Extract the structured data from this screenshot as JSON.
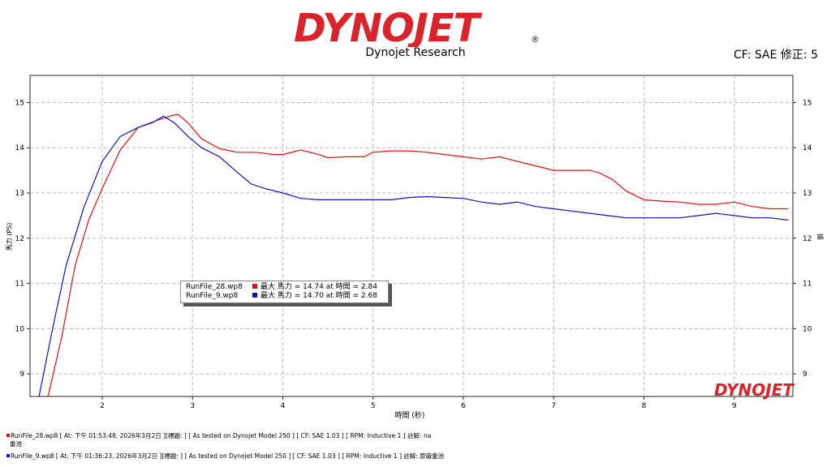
{
  "header": {
    "logo_text": "DYNOJET",
    "subtitle": "Dynojet Research",
    "cf_label": "CF: SAE 修正: 5"
  },
  "watermark": {
    "text": "DYNOJET"
  },
  "legend": {
    "entries": [
      {
        "file": "RunFile_28.wp8",
        "text": "最大 馬力 = 14.74 at 時間 = 2.84",
        "color": "#e01010"
      },
      {
        "file": "RunFile_9.wp8",
        "text": "最大 馬力 = 14.70 at 時間 = 2.68",
        "color": "#1010c0"
      }
    ]
  },
  "footer": {
    "lines": [
      {
        "text": "RunFile_28.wp8  [ At: 下午 01:53:48, 2026年3月2日 ][標題: ]  [ As tested on Dynojet Model 250 ]  [ CF: SAE 1.03 ]  [ RPM: Inductive 1 ] 註解: na",
        "cont": "重池",
        "color": "#e01010"
      },
      {
        "text": "RunFile_9.wp8  [ At: 下午 01:36:23, 2026年3月2日 ][標題: ]  [ As tested on Dynojet Model 250 ]  [ CF: SAE 1.03 ]  [ RPM: Inductive 1 ] 註解: 原廠重池",
        "cont": "",
        "color": "#1010c0"
      }
    ]
  },
  "chart_data": {
    "type": "line",
    "xlabel": "時間 (秒)",
    "ylabel": "馬力 (PS)",
    "ylabel_right": "據",
    "xlim": [
      1.2,
      9.65
    ],
    "ylim": [
      8.5,
      15.6
    ],
    "xticks": [
      2,
      3,
      4,
      5,
      6,
      7,
      8,
      9
    ],
    "yticks": [
      9,
      10,
      11,
      12,
      13,
      14,
      15
    ],
    "grid": true,
    "legend_position": "center-left",
    "series": [
      {
        "name": "RunFile_28.wp8",
        "color": "#e01010",
        "x": [
          1.4,
          1.55,
          1.7,
          1.85,
          2.0,
          2.2,
          2.4,
          2.6,
          2.75,
          2.84,
          2.95,
          3.1,
          3.3,
          3.5,
          3.7,
          3.9,
          4.0,
          4.2,
          4.4,
          4.5,
          4.7,
          4.9,
          5.0,
          5.2,
          5.4,
          5.6,
          5.8,
          6.0,
          6.2,
          6.4,
          6.6,
          6.8,
          7.0,
          7.2,
          7.4,
          7.5,
          7.65,
          7.8,
          8.0,
          8.2,
          8.4,
          8.6,
          8.8,
          9.0,
          9.2,
          9.4,
          9.6
        ],
        "y": [
          8.5,
          9.8,
          11.4,
          12.4,
          13.1,
          13.95,
          14.45,
          14.6,
          14.7,
          14.74,
          14.55,
          14.2,
          13.98,
          13.9,
          13.9,
          13.85,
          13.85,
          13.95,
          13.85,
          13.78,
          13.8,
          13.8,
          13.9,
          13.93,
          13.93,
          13.9,
          13.85,
          13.8,
          13.75,
          13.8,
          13.7,
          13.6,
          13.5,
          13.5,
          13.5,
          13.45,
          13.3,
          13.05,
          12.85,
          12.82,
          12.8,
          12.75,
          12.75,
          12.8,
          12.7,
          12.65,
          12.65
        ]
      },
      {
        "name": "RunFile_9.wp8",
        "color": "#1010c0",
        "x": [
          1.3,
          1.45,
          1.6,
          1.8,
          2.0,
          2.2,
          2.4,
          2.55,
          2.68,
          2.8,
          2.95,
          3.1,
          3.3,
          3.5,
          3.65,
          3.8,
          4.0,
          4.2,
          4.4,
          4.6,
          4.8,
          5.0,
          5.2,
          5.4,
          5.6,
          5.8,
          6.0,
          6.2,
          6.4,
          6.6,
          6.8,
          7.0,
          7.2,
          7.4,
          7.6,
          7.8,
          8.0,
          8.2,
          8.4,
          8.6,
          8.8,
          9.0,
          9.2,
          9.4,
          9.6
        ],
        "y": [
          8.5,
          10.0,
          11.4,
          12.7,
          13.7,
          14.25,
          14.45,
          14.55,
          14.7,
          14.55,
          14.25,
          14.0,
          13.8,
          13.45,
          13.2,
          13.1,
          13.0,
          12.88,
          12.85,
          12.85,
          12.85,
          12.85,
          12.85,
          12.9,
          12.92,
          12.9,
          12.88,
          12.8,
          12.75,
          12.8,
          12.7,
          12.65,
          12.6,
          12.55,
          12.5,
          12.45,
          12.45,
          12.45,
          12.45,
          12.5,
          12.55,
          12.5,
          12.45,
          12.45,
          12.4
        ]
      }
    ]
  }
}
